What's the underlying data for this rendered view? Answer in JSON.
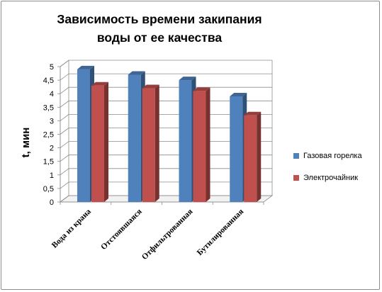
{
  "chart_data": {
    "type": "bar",
    "title": "Зависимость времени закипания воды от ее качества",
    "ylabel": "t, мин",
    "xlabel": "",
    "ylim": [
      0,
      5
    ],
    "yticks": [
      "0",
      "0,5",
      "1",
      "1,5",
      "2",
      "2,5",
      "3",
      "3,5",
      "4",
      "4,5",
      "5"
    ],
    "categories": [
      "Вода из крана",
      "Отстоявшаяся",
      "Отфильтрованная",
      "Бутилированная"
    ],
    "series": [
      {
        "name": "Газовая горелка",
        "values": [
          4.9,
          4.7,
          4.5,
          3.9
        ],
        "color": "#4f81bd"
      },
      {
        "name": "Электрочайник",
        "values": [
          4.3,
          4.2,
          4.1,
          3.2
        ],
        "color": "#c0504d"
      }
    ],
    "grid": true,
    "legend": "right",
    "three_d": true
  }
}
